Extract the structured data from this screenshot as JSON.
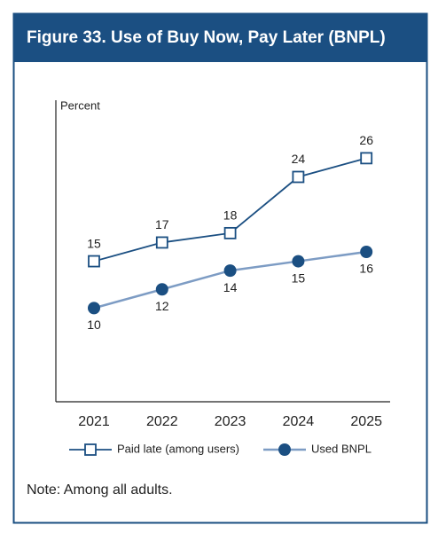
{
  "chart_data": {
    "type": "line",
    "title": "Figure 33. Use of Buy Now, Pay Later (BNPL)",
    "y_label": "Percent",
    "categories": [
      "2021",
      "2022",
      "2023",
      "2024",
      "2025"
    ],
    "series": [
      {
        "name": "Paid late (among users)",
        "color": "#1b4f82",
        "marker": "square",
        "values": [
          15,
          17,
          18,
          24,
          26
        ]
      },
      {
        "name": "Used BNPL",
        "color": "#7d9cc4",
        "marker_color": "#1b4f82",
        "marker": "circle",
        "values": [
          10,
          12,
          14,
          15,
          16
        ]
      }
    ],
    "ylim": [
      0,
      32
    ],
    "note": "Note: Among all adults."
  }
}
